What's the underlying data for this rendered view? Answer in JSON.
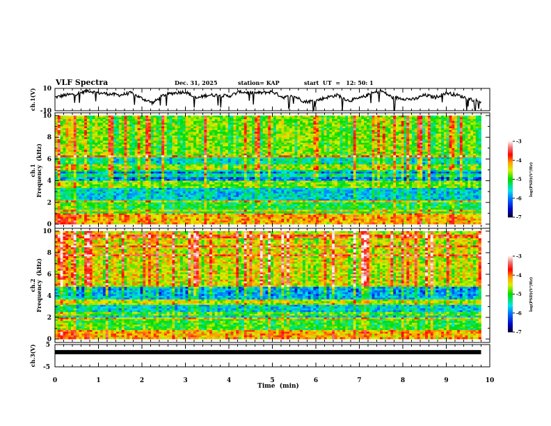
{
  "header": {
    "title": "VLF Spectra",
    "date": "Dec. 31, 2025",
    "station": "station= KAP",
    "start": "start  UT  =   12: 50: 1"
  },
  "chart_data": [
    {
      "type": "line",
      "name": "ch1-waveform",
      "ylabel": "ch.1(V)",
      "ylim": [
        -10,
        10
      ],
      "yticks": [
        "10",
        "-10"
      ],
      "xlim": [
        0,
        10
      ],
      "data_end_min": 9.8,
      "series": [
        {
          "name": "ch.1",
          "x": [
            0,
            0.25,
            0.5,
            0.75,
            1,
            1.25,
            1.5,
            1.75,
            2,
            2.25,
            2.5,
            2.75,
            3,
            3.25,
            3.5,
            3.75,
            4,
            4.25,
            4.5,
            4.75,
            5,
            5.25,
            5.5,
            5.75,
            6,
            6.25,
            6.5,
            6.75,
            7,
            7.25,
            7.5,
            7.75,
            8,
            8.25,
            8.5,
            8.75,
            9,
            9.25,
            9.5,
            9.8
          ],
          "values": [
            2,
            4,
            5,
            8,
            6,
            5,
            4,
            6,
            1,
            -3,
            4,
            6,
            7,
            1,
            4,
            4,
            3,
            7,
            6,
            6,
            7,
            2,
            3,
            -2,
            -1,
            2,
            4,
            -1,
            1,
            5,
            8,
            2,
            1,
            0,
            4,
            2,
            6,
            4,
            1,
            -2
          ]
        }
      ]
    },
    {
      "type": "heatmap",
      "name": "ch1-spectrogram",
      "title": "ch.1",
      "ylabel": "Frequency  (kHz)",
      "ylim": [
        0,
        10
      ],
      "yticks": [
        "0",
        "2",
        "4",
        "6",
        "8",
        "10"
      ],
      "xlim": [
        0,
        10
      ],
      "data_end_min": 9.8,
      "colorbar": {
        "label": "log(PSD)(V²/Hz)",
        "range": [
          -7,
          -3
        ],
        "ticks": [
          "-3",
          "-4",
          "-5",
          "-6",
          "-7"
        ],
        "colormap": "rainbow"
      },
      "bands": [
        {
          "fmin": 0,
          "fmax": 1,
          "level": -4.2
        },
        {
          "fmin": 1,
          "fmax": 2.2,
          "level": -5.1
        },
        {
          "fmin": 2.2,
          "fmax": 3.4,
          "level": -5.6
        },
        {
          "fmin": 3.4,
          "fmax": 4.0,
          "level": -4.8
        },
        {
          "fmin": 4.0,
          "fmax": 5.0,
          "level": -5.9
        },
        {
          "fmin": 5.0,
          "fmax": 5.5,
          "level": -4.6
        },
        {
          "fmin": 5.5,
          "fmax": 6.2,
          "level": -5.3
        },
        {
          "fmin": 6.2,
          "fmax": 10,
          "level": -4.7
        }
      ]
    },
    {
      "type": "heatmap",
      "name": "ch2-spectrogram",
      "title": "ch.2",
      "ylabel": "Frequency  (kHz)",
      "ylim": [
        0,
        10
      ],
      "yticks": [
        "0",
        "2",
        "4",
        "6",
        "8",
        "10"
      ],
      "xlim": [
        0,
        10
      ],
      "data_end_min": 9.8,
      "colorbar": {
        "label": "log(PSD)(V²/Hz)",
        "range": [
          -7,
          -3
        ],
        "ticks": [
          "-3",
          "-4",
          "-5",
          "-6",
          "-7"
        ],
        "colormap": "rainbow"
      },
      "bands": [
        {
          "fmin": 0,
          "fmax": 0.8,
          "level": -4.2
        },
        {
          "fmin": 0.8,
          "fmax": 2.0,
          "level": -5.0
        },
        {
          "fmin": 2.0,
          "fmax": 3.2,
          "level": -5.6
        },
        {
          "fmin": 3.2,
          "fmax": 3.6,
          "level": -4.6
        },
        {
          "fmin": 3.6,
          "fmax": 4.8,
          "level": -5.7
        },
        {
          "fmin": 4.8,
          "fmax": 10,
          "level": -4.4
        }
      ]
    },
    {
      "type": "line",
      "name": "ch3-waveform",
      "ylabel": "ch.3(V)",
      "ylim": [
        -5,
        5
      ],
      "yticks": [
        "5",
        "-5"
      ],
      "xlim": [
        0,
        10
      ],
      "xlabel": "Time  (min)",
      "xticks": [
        "0",
        "1",
        "2",
        "3",
        "4",
        "5",
        "6",
        "7",
        "8",
        "9",
        "10"
      ],
      "data_end_min": 9.8,
      "series": [
        {
          "name": "ch.3",
          "level": 1.6
        }
      ]
    }
  ]
}
